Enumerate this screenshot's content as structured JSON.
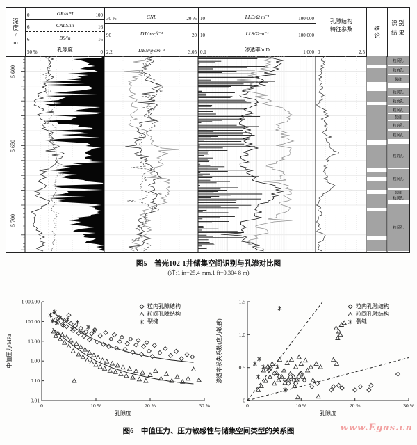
{
  "watermark": "www.Egas.cn",
  "figure5": {
    "depth_header": "深度/m",
    "depth_labels": [
      {
        "text": "5 600",
        "y": 22
      },
      {
        "text": "5 650",
        "y": 129
      },
      {
        "text": "5 700",
        "y": 236
      }
    ],
    "tracks": [
      {
        "rows": [
          {
            "name": "GR/API",
            "l": "0",
            "r": "100",
            "italic": true,
            "sep": "solid"
          },
          {
            "name": "CALS/in",
            "l": "6",
            "r": "16",
            "italic": true,
            "sep": "dashed"
          },
          {
            "name": "BS/in",
            "l": "6",
            "r": "16",
            "italic": true,
            "sep": "dashed"
          },
          {
            "name": "孔隙度",
            "l": "50 %",
            "r": "0",
            "italic": false,
            "sep": null
          }
        ]
      },
      {
        "rows": [
          {
            "name": "CNL",
            "l": "30 %",
            "r": "-20 %",
            "italic": true,
            "sep": "solid"
          },
          {
            "name": "DT/ms·ft⁻¹",
            "l": "90",
            "r": "20",
            "italic": true,
            "sep": "solid"
          },
          {
            "name": "DEN/g·cm⁻³",
            "l": "2.2",
            "r": "3.05",
            "italic": true,
            "sep": null
          }
        ]
      },
      {
        "rows": [
          {
            "name": "LLD/Ω·m⁻¹",
            "l": "10",
            "r": "100 000",
            "italic": true,
            "sep": "solid"
          },
          {
            "name": "LLS/Ω·m⁻¹",
            "l": "10",
            "r": "100 000",
            "italic": true,
            "sep": "solid"
          },
          {
            "name": "渗透率/mD",
            "l": "0.1",
            "r": "1 000",
            "italic": false,
            "sep": null
          }
        ]
      },
      {
        "label_line1": "孔隙结构",
        "label_line2": "特征参数",
        "l": "0",
        "r": "2.5"
      }
    ],
    "conclusion_header": "结论",
    "result_header": "识别结果",
    "concl_zones": [
      {
        "t": 0,
        "h": 13
      },
      {
        "t": 17,
        "h": 20
      },
      {
        "t": 50,
        "h": 15
      },
      {
        "t": 70,
        "h": 50
      },
      {
        "t": 128,
        "h": 32
      },
      {
        "t": 166,
        "h": 8
      },
      {
        "t": 180,
        "h": 12
      },
      {
        "t": 198,
        "h": 20
      },
      {
        "t": 222,
        "h": 36
      },
      {
        "t": 264,
        "h": 16
      }
    ],
    "result_zones": [
      {
        "t": 0,
        "h": 12,
        "label": "粒间孔"
      },
      {
        "t": 14,
        "h": 11,
        "label": "粒内孔"
      },
      {
        "t": 27,
        "h": 12,
        "label": "裂缝"
      },
      {
        "t": 46,
        "h": 11,
        "label": "粒间孔"
      },
      {
        "t": 59,
        "h": 11,
        "label": "粒内孔"
      },
      {
        "t": 72,
        "h": 10,
        "label": "粒间孔"
      },
      {
        "t": 83,
        "h": 9,
        "label": "裂缝"
      },
      {
        "t": 93,
        "h": 12,
        "label": "粒内孔"
      },
      {
        "t": 107,
        "h": 12,
        "label": "粒间孔"
      },
      {
        "t": 126,
        "h": 34,
        "label": "粒内孔"
      },
      {
        "t": 162,
        "h": 28,
        "label": "粒间孔"
      },
      {
        "t": 192,
        "h": 7,
        "label": "裂缝"
      },
      {
        "t": 200,
        "h": 7,
        "label": "粒间孔"
      },
      {
        "t": 212,
        "h": 68,
        "label": "粒间孔"
      }
    ],
    "caption": "图5　普光102-1井储集空间识别与孔渗对比图",
    "caption_note": "(注:1 in=25.4 mm,1 ft=0.304 8 m)"
  },
  "figure6": {
    "caption": "图6　中值压力、压力敏感性与储集空间类型的关系图"
  },
  "chart_data": [
    {
      "type": "scatter",
      "xlabel": "孔隙度",
      "ylabel": "中值压力/MPa",
      "xlim": [
        0,
        30
      ],
      "ylim": [
        0.01,
        1000
      ],
      "log_y": true,
      "grid": false,
      "legend_position": "top-right",
      "x_ticks": [
        "0",
        "10 %",
        "20 %",
        "30 %"
      ],
      "x_tick_vals": [
        0,
        10,
        20,
        30
      ],
      "y_ticks": [
        "1 000.00",
        "100.00",
        "10.00",
        "1.00",
        "0.10",
        "0.01"
      ],
      "y_tick_vals": [
        1000,
        100,
        10,
        1,
        0.1,
        0.01
      ],
      "series": [
        {
          "name": "粒内孔隙结构",
          "marker": "diamond",
          "points": [
            [
              2.5,
              120
            ],
            [
              3,
              95
            ],
            [
              3.2,
              160
            ],
            [
              3.8,
              70
            ],
            [
              4.2,
              110
            ],
            [
              4.6,
              55
            ],
            [
              5,
              210
            ],
            [
              5.4,
              80
            ],
            [
              5.8,
              35
            ],
            [
              6.2,
              60
            ],
            [
              6.8,
              25
            ],
            [
              7.2,
              45
            ],
            [
              7.8,
              18
            ],
            [
              8.2,
              30
            ],
            [
              8.8,
              12
            ],
            [
              9.2,
              24
            ],
            [
              9.8,
              38
            ],
            [
              10.2,
              9
            ],
            [
              10.8,
              19
            ],
            [
              11.4,
              7
            ],
            [
              11.8,
              27
            ],
            [
              12.4,
              5.5
            ],
            [
              12.8,
              13
            ],
            [
              13.4,
              21
            ],
            [
              13.8,
              4.5
            ],
            [
              14.4,
              9.5
            ],
            [
              14.8,
              16
            ],
            [
              15.4,
              3.8
            ],
            [
              15.8,
              7.5
            ],
            [
              16.4,
              13
            ],
            [
              16.8,
              2.8
            ],
            [
              17.4,
              6.5
            ],
            [
              17.8,
              11
            ],
            [
              18.4,
              2.2
            ],
            [
              18.8,
              5.5
            ],
            [
              19.4,
              8.5
            ],
            [
              19.8,
              3.2
            ],
            [
              20.4,
              1.7
            ],
            [
              20.8,
              6.2
            ],
            [
              21.8,
              2.6
            ],
            [
              22.8,
              4.2
            ],
            [
              23.8,
              1.9
            ],
            [
              24.8,
              3.1
            ],
            [
              25.8,
              1.3
            ],
            [
              26.8,
              2.1
            ],
            [
              27.8,
              1.6
            ]
          ]
        },
        {
          "name": "粒间孔隙结构",
          "marker": "triangle",
          "points": [
            [
              2.2,
              32
            ],
            [
              2.6,
              19
            ],
            [
              3,
              26
            ],
            [
              3.4,
              13
            ],
            [
              3.8,
              21
            ],
            [
              4.2,
              8.5
            ],
            [
              4.6,
              16
            ],
            [
              5,
              5.5
            ],
            [
              5.4,
              11
            ],
            [
              5.8,
              3.2
            ],
            [
              6,
              0.1
            ],
            [
              6.4,
              7.5
            ],
            [
              6.8,
              2.2
            ],
            [
              7.2,
              5.2
            ],
            [
              7.6,
              1.6
            ],
            [
              8,
              3.8
            ],
            [
              8.4,
              1.1
            ],
            [
              8.8,
              2.7
            ],
            [
              9.2,
              0.85
            ],
            [
              9.6,
              2
            ],
            [
              10,
              0.65
            ],
            [
              10.4,
              1.5
            ],
            [
              10.8,
              0.5
            ],
            [
              11.2,
              1.1
            ],
            [
              11.6,
              0.42
            ],
            [
              12,
              0.95
            ],
            [
              12.6,
              0.33
            ],
            [
              13,
              0.75
            ],
            [
              13.6,
              0.28
            ],
            [
              14,
              0.6
            ],
            [
              14.6,
              0.22
            ],
            [
              15,
              0.48
            ],
            [
              15.6,
              0.18
            ],
            [
              16.2,
              0.4
            ],
            [
              16.8,
              0.15
            ],
            [
              17.4,
              0.32
            ],
            [
              18,
              0.12
            ],
            [
              18.6,
              0.26
            ],
            [
              19.2,
              0.1
            ],
            [
              20,
              0.2
            ],
            [
              21,
              0.32
            ],
            [
              22,
              0.13
            ],
            [
              23,
              0.22
            ],
            [
              24,
              0.1
            ],
            [
              25,
              0.16
            ],
            [
              26,
              0.09
            ],
            [
              27,
              0.13
            ],
            [
              28,
              0.38
            ],
            [
              29,
              0.11
            ]
          ]
        },
        {
          "name": "裂缝",
          "marker": "asterisk",
          "points": [
            [
              1.6,
              210
            ],
            [
              2,
              105
            ],
            [
              2.4,
              300
            ],
            [
              2.8,
              85
            ],
            [
              3.4,
              155
            ],
            [
              4,
              62
            ],
            [
              4.8,
              125
            ],
            [
              5.6,
              42
            ],
            [
              6.6,
              92
            ],
            [
              7.6,
              28
            ],
            [
              8.6,
              52
            ],
            [
              9.6,
              33
            ]
          ]
        }
      ],
      "lines": [
        {
          "dash": false,
          "points": [
            [
              2,
              300
            ],
            [
              4,
              120
            ],
            [
              6,
              50
            ],
            [
              8,
              22
            ],
            [
              10,
              11
            ],
            [
              13,
              5
            ],
            [
              16,
              2.8
            ],
            [
              20,
              1.6
            ],
            [
              24,
              1.1
            ],
            [
              28,
              0.85
            ]
          ]
        },
        {
          "dash": false,
          "points": [
            [
              2,
              45
            ],
            [
              4,
              15
            ],
            [
              6,
              5.5
            ],
            [
              8,
              2.2
            ],
            [
              10,
              1.0
            ],
            [
              13,
              0.45
            ],
            [
              16,
              0.25
            ],
            [
              20,
              0.14
            ],
            [
              24,
              0.09
            ],
            [
              28,
              0.07
            ]
          ]
        }
      ]
    },
    {
      "type": "scatter",
      "xlabel": "孔隙度",
      "ylabel": "渗透率损失系数(应力敏感)",
      "xlim": [
        0,
        30
      ],
      "ylim": [
        0,
        1.5
      ],
      "log_y": false,
      "grid": false,
      "legend_position": "top-right",
      "x_ticks": [
        "0",
        "10 %",
        "20 %",
        "30 %"
      ],
      "x_tick_vals": [
        0,
        10,
        20,
        30
      ],
      "y_ticks": [
        "0",
        "0.5",
        "1.0",
        "1.5"
      ],
      "y_tick_vals": [
        0,
        0.5,
        1.0,
        1.5
      ],
      "series": [
        {
          "name": "粒内孔隙结构",
          "marker": "diamond",
          "points": [
            [
              4,
              0.46
            ],
            [
              5,
              0.41
            ],
            [
              6,
              0.36
            ],
            [
              7,
              0.31
            ],
            [
              7.6,
              0.26
            ],
            [
              8,
              0.36
            ],
            [
              8.6,
              0.31
            ],
            [
              9,
              0.26
            ],
            [
              9.6,
              0.36
            ],
            [
              10,
              0.41
            ],
            [
              10.6,
              0.31
            ],
            [
              12,
              0.21
            ],
            [
              13,
              0.26
            ],
            [
              15.6,
              0.16
            ],
            [
              16,
              0.21
            ],
            [
              17,
              0.23
            ],
            [
              17.6,
              0.19
            ],
            [
              20,
              0.16
            ],
            [
              21,
              0.21
            ],
            [
              22.6,
              0.16
            ],
            [
              23,
              0.23
            ],
            [
              28,
              0.4
            ]
          ]
        },
        {
          "name": "粒间孔隙结构",
          "marker": "triangle",
          "points": [
            [
              2,
              0.16
            ],
            [
              2.6,
              0.22
            ],
            [
              3,
              0.46
            ],
            [
              3.4,
              0.3
            ],
            [
              3.8,
              0.52
            ],
            [
              4.2,
              0.36
            ],
            [
              4.6,
              0.56
            ],
            [
              5,
              0.26
            ],
            [
              5.4,
              0.42
            ],
            [
              5.8,
              0.31
            ],
            [
              6,
              0.62
            ],
            [
              6.4,
              0.36
            ],
            [
              6.8,
              0.46
            ],
            [
              7,
              0.27
            ],
            [
              7.4,
              0.57
            ],
            [
              7.6,
              0.32
            ],
            [
              8,
              0.41
            ],
            [
              8.2,
              0.62
            ],
            [
              8.6,
              0.36
            ],
            [
              8.8,
              0.22
            ],
            [
              9,
              0.51
            ],
            [
              9.2,
              0.32
            ],
            [
              9.4,
              0.05
            ],
            [
              9.6,
              0.66
            ],
            [
              9.8,
              0.41
            ],
            [
              10,
              0.56
            ],
            [
              10.4,
              0.36
            ],
            [
              10.8,
              0.61
            ],
            [
              11.2,
              0.46
            ],
            [
              11.8,
              0.51
            ],
            [
              12.2,
              0.31
            ],
            [
              12.8,
              0.56
            ],
            [
              13.2,
              0.06
            ],
            [
              13.6,
              0.51
            ],
            [
              16,
              0.62
            ],
            [
              16.6,
              0.56
            ],
            [
              16.5,
              1.1
            ],
            [
              17,
              1.05
            ],
            [
              17.5,
              1.15
            ],
            [
              16.8,
              0.95
            ],
            [
              17.3,
              1.0
            ],
            [
              18,
              1.18
            ]
          ]
        },
        {
          "name": "裂缝",
          "marker": "asterisk",
          "points": [
            [
              1.4,
              0.56
            ],
            [
              2.2,
              0.63
            ],
            [
              3,
              0.51
            ],
            [
              4.2,
              0.49
            ],
            [
              5.6,
              0.51
            ],
            [
              6,
              1.4
            ],
            [
              2,
              0.36
            ],
            [
              7,
              0.16
            ]
          ]
        }
      ],
      "lines": [
        {
          "dash": true,
          "points": [
            [
              0,
              0
            ],
            [
              14,
              1.5
            ]
          ]
        },
        {
          "dash": true,
          "points": [
            [
              0,
              0
            ],
            [
              30,
              0.65
            ]
          ]
        }
      ]
    }
  ]
}
